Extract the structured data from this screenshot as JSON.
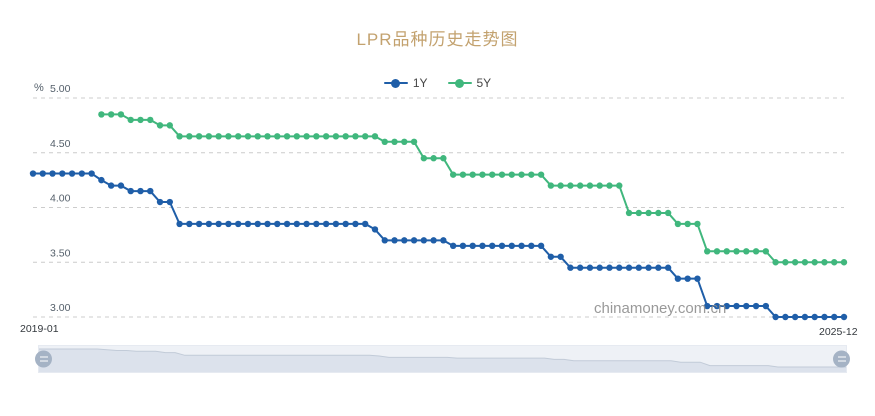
{
  "title": "LPR品种历史走势图",
  "legend": {
    "items": [
      {
        "label": "1Y",
        "color": "#1f5ea8"
      },
      {
        "label": "5Y",
        "color": "#40b77d"
      }
    ]
  },
  "y_axis": {
    "unit": "%",
    "tick_labels": [
      "5.00",
      "4.50",
      "4.00",
      "3.50",
      "3.00"
    ]
  },
  "x_axis": {
    "start_label": "2019-01",
    "end_label": "2025-12"
  },
  "watermark": "chinamoney.com.cn",
  "colors": {
    "series_1y": "#1f5ea8",
    "series_5y": "#40b77d",
    "title": "#c3a26f",
    "grid": "#cccccc",
    "y_tick_label": "#55606b",
    "x_tick_label": "#33383d",
    "watermark": "#8f8f8f",
    "slider_track": "#eef1f6",
    "slider_shadow_fill": "#dce2ec",
    "slider_shadow_line": "#c2cbd8",
    "slider_handle": "#a5b3c5"
  },
  "chart_data": {
    "type": "line",
    "title": "LPR品种历史走势图",
    "unit": "%",
    "ylim": [
      3.0,
      5.0
    ],
    "y_ticks": [
      5.0,
      4.5,
      4.0,
      3.5,
      3.0
    ],
    "x_range": [
      "2019-01",
      "2025-12"
    ],
    "grid": "horizontal-dashed",
    "legend_position": "top",
    "categories": [
      "2019-01",
      "2019-02",
      "2019-03",
      "2019-04",
      "2019-05",
      "2019-06",
      "2019-07",
      "2019-08",
      "2019-09",
      "2019-10",
      "2019-11",
      "2019-12",
      "2020-01",
      "2020-02",
      "2020-03",
      "2020-04",
      "2020-05",
      "2020-06",
      "2020-07",
      "2020-08",
      "2020-09",
      "2020-10",
      "2020-11",
      "2020-12",
      "2021-01",
      "2021-02",
      "2021-03",
      "2021-04",
      "2021-05",
      "2021-06",
      "2021-07",
      "2021-08",
      "2021-09",
      "2021-10",
      "2021-11",
      "2021-12",
      "2022-01",
      "2022-02",
      "2022-03",
      "2022-04",
      "2022-05",
      "2022-06",
      "2022-07",
      "2022-08",
      "2022-09",
      "2022-10",
      "2022-11",
      "2022-12",
      "2023-01",
      "2023-02",
      "2023-03",
      "2023-04",
      "2023-05",
      "2023-06",
      "2023-07",
      "2023-08",
      "2023-09",
      "2023-10",
      "2023-11",
      "2023-12",
      "2024-01",
      "2024-02",
      "2024-03",
      "2024-04",
      "2024-05",
      "2024-06",
      "2024-07",
      "2024-08",
      "2024-09",
      "2024-10",
      "2024-11",
      "2024-12",
      "2025-01",
      "2025-02",
      "2025-03",
      "2025-04",
      "2025-05",
      "2025-06",
      "2025-07",
      "2025-08",
      "2025-09",
      "2025-10",
      "2025-11",
      "2025-12"
    ],
    "series": [
      {
        "name": "1Y",
        "color": "#1f5ea8",
        "values": [
          4.31,
          4.31,
          4.31,
          4.31,
          4.31,
          4.31,
          4.31,
          4.25,
          4.2,
          4.2,
          4.15,
          4.15,
          4.15,
          4.05,
          4.05,
          3.85,
          3.85,
          3.85,
          3.85,
          3.85,
          3.85,
          3.85,
          3.85,
          3.85,
          3.85,
          3.85,
          3.85,
          3.85,
          3.85,
          3.85,
          3.85,
          3.85,
          3.85,
          3.85,
          3.85,
          3.8,
          3.7,
          3.7,
          3.7,
          3.7,
          3.7,
          3.7,
          3.7,
          3.65,
          3.65,
          3.65,
          3.65,
          3.65,
          3.65,
          3.65,
          3.65,
          3.65,
          3.65,
          3.55,
          3.55,
          3.45,
          3.45,
          3.45,
          3.45,
          3.45,
          3.45,
          3.45,
          3.45,
          3.45,
          3.45,
          3.45,
          3.35,
          3.35,
          3.35,
          3.1,
          3.1,
          3.1,
          3.1,
          3.1,
          3.1,
          3.1,
          3.0,
          3.0,
          3.0,
          3.0,
          3.0,
          3.0,
          3.0,
          3.0
        ]
      },
      {
        "name": "5Y",
        "color": "#40b77d",
        "values": [
          null,
          null,
          null,
          null,
          null,
          null,
          null,
          4.85,
          4.85,
          4.85,
          4.8,
          4.8,
          4.8,
          4.75,
          4.75,
          4.65,
          4.65,
          4.65,
          4.65,
          4.65,
          4.65,
          4.65,
          4.65,
          4.65,
          4.65,
          4.65,
          4.65,
          4.65,
          4.65,
          4.65,
          4.65,
          4.65,
          4.65,
          4.65,
          4.65,
          4.65,
          4.6,
          4.6,
          4.6,
          4.6,
          4.45,
          4.45,
          4.45,
          4.3,
          4.3,
          4.3,
          4.3,
          4.3,
          4.3,
          4.3,
          4.3,
          4.3,
          4.3,
          4.2,
          4.2,
          4.2,
          4.2,
          4.2,
          4.2,
          4.2,
          4.2,
          3.95,
          3.95,
          3.95,
          3.95,
          3.95,
          3.85,
          3.85,
          3.85,
          3.6,
          3.6,
          3.6,
          3.6,
          3.6,
          3.6,
          3.6,
          3.5,
          3.5,
          3.5,
          3.5,
          3.5,
          3.5,
          3.5,
          3.5
        ]
      }
    ]
  }
}
